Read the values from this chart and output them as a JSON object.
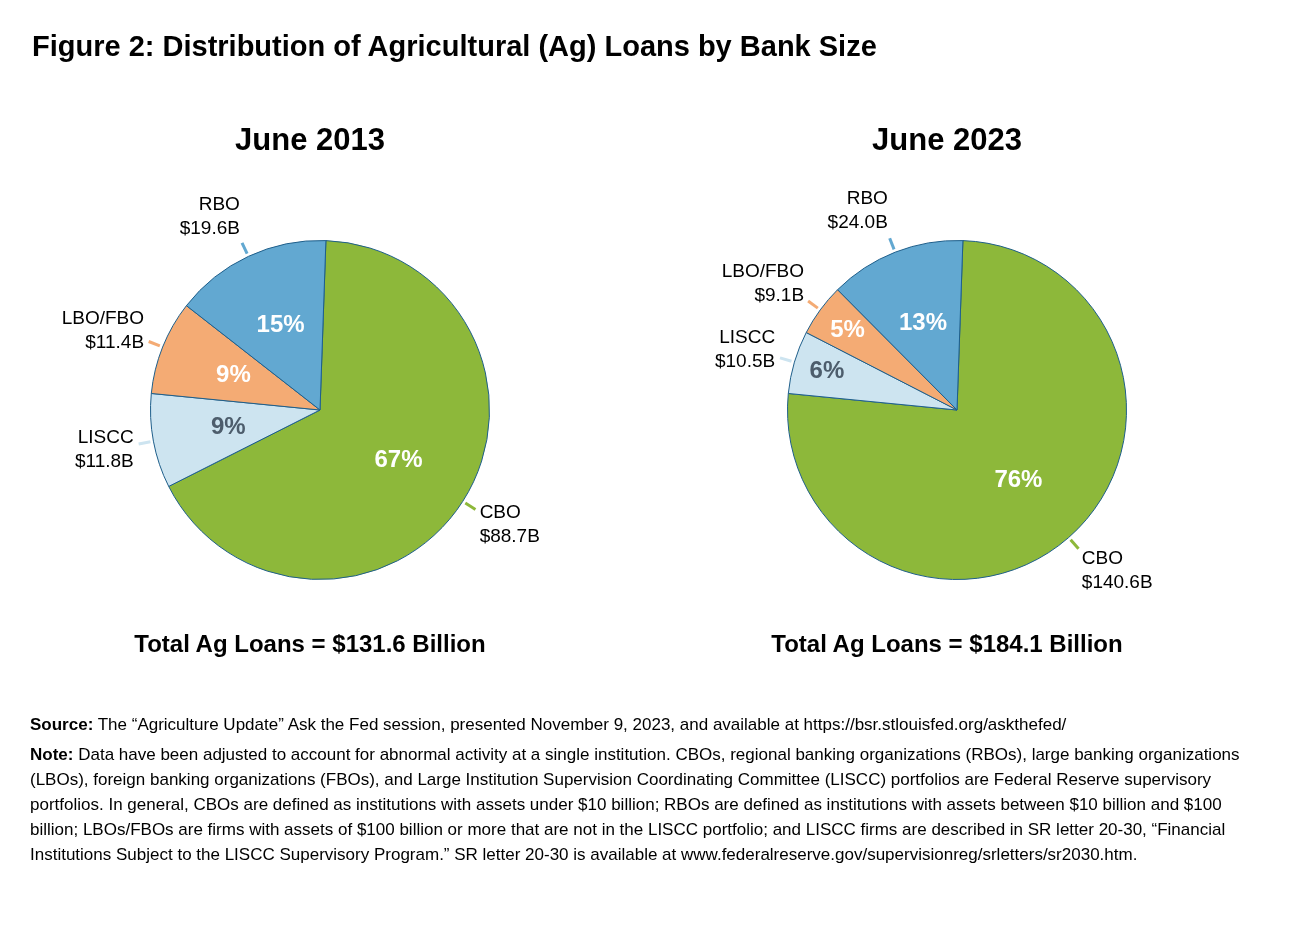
{
  "chart_data": [
    {
      "type": "pie",
      "title": "Figure 2: Distribution of Agricultural (Ag) Loans by Bank Size",
      "subtitle": "June 2013",
      "categories": [
        "CBO\n$88.7B",
        "LISCC\n$11.8B",
        "LBO/FBO\n$11.4B",
        "RBO\n$19.6B"
      ],
      "values": [
        67,
        9,
        9,
        15
      ],
      "value_labels": [
        "67%",
        "9%",
        "9%",
        "15%"
      ],
      "colors": [
        "#8db83a",
        "#cde4f0",
        "#f4ab74",
        "#62a8d1"
      ],
      "annotations": [
        "Total Ag Loans = $131.6 Billion"
      ]
    },
    {
      "type": "pie",
      "subtitle": "June 2023",
      "categories": [
        "CBO\n$140.6B",
        "LISCC\n$10.5B",
        "LBO/FBO\n$9.1B",
        "RBO\n$24.0B"
      ],
      "values": [
        76,
        6,
        5,
        13
      ],
      "value_labels": [
        "76%",
        "6%",
        "5%",
        "13%"
      ],
      "colors": [
        "#8db83a",
        "#cde4f0",
        "#f4ab74",
        "#62a8d1"
      ],
      "annotations": [
        "Total Ag Loans = $184.1 Billion",
        "Source: The “Agriculture Update” Ask the Fed session, presented November 9, 2023, and available at https://bsr.stlouisfed.org/askthefed/",
        "Note: Data have been adjusted to account for abnormal activity at a single institution. CBOs, regional banking organizations (RBOs), large banking organizations (LBOs), foreign banking organizations (FBOs), and Large Institution Supervision Coordinating Committee (LISCC) portfolios are Federal Reserve supervisory portfolios. In general, CBOs are defined as institutions with assets under $10 billion; RBOs are defined as institutions with assets between $10 billion and $100 billion; LBOs/FBOs are firms with assets of $100 billion or more that are not in the LISCC portfolio; and LISCC firms are described in SR letter 20-30, “Financial Institutions Subject to the LISCC Supervisory Program.” SR letter 20-30 is available at www.federalreserve.gov/supervisionreg/srletters/sr2030.htm."
      ]
    }
  ]
}
